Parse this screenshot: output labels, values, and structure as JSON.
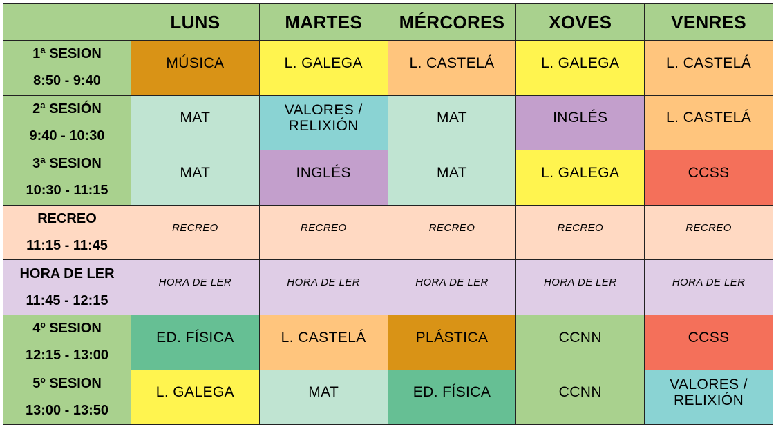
{
  "colors": {
    "header": "#a9d18e",
    "musica": "#d99316",
    "galega": "#fff44f",
    "castela": "#ffc57d",
    "mat": "#c0e4d2",
    "valores": "#8ad3d3",
    "ingles": "#c39fcc",
    "ccss": "#f4705a",
    "recreo": "#ffd9c2",
    "ler": "#dfcde6",
    "edfisica": "#66bf94",
    "plastica": "#d99316",
    "ccnn": "#a9d18e"
  },
  "days": [
    "LUNS",
    "MARTES",
    "MÉRCORES",
    "XOVES",
    "VENRES"
  ],
  "rows": [
    {
      "name": "1ª SESION",
      "time": "8:50 - 9:40",
      "cells": [
        {
          "label": "MÚSICA",
          "color": "#d99316"
        },
        {
          "label": "L. GALEGA",
          "color": "#fff44f"
        },
        {
          "label": "L. CASTELÁ",
          "color": "#ffc57d"
        },
        {
          "label": "L. GALEGA",
          "color": "#fff44f"
        },
        {
          "label": "L. CASTELÁ",
          "color": "#ffc57d"
        }
      ]
    },
    {
      "name": "2ª SESIÓN",
      "time": "9:40 - 10:30",
      "cells": [
        {
          "label": "MAT",
          "color": "#c0e4d2"
        },
        {
          "label": "VALORES / RELIXIÓN",
          "color": "#8ad3d3"
        },
        {
          "label": "MAT",
          "color": "#c0e4d2"
        },
        {
          "label": "INGLÉS",
          "color": "#c39fcc"
        },
        {
          "label": "L. CASTELÁ",
          "color": "#ffc57d"
        }
      ]
    },
    {
      "name": "3ª SESION",
      "time": "10:30 - 11:15",
      "cells": [
        {
          "label": "MAT",
          "color": "#c0e4d2"
        },
        {
          "label": "INGLÉS",
          "color": "#c39fcc"
        },
        {
          "label": "MAT",
          "color": "#c0e4d2"
        },
        {
          "label": "L. GALEGA",
          "color": "#fff44f"
        },
        {
          "label": "CCSS",
          "color": "#f4705a"
        }
      ]
    },
    {
      "name": "RECREO",
      "time": "11:15 - 11:45",
      "small": true,
      "cells": [
        {
          "label": "RECREO",
          "color": "#ffd9c2"
        },
        {
          "label": "RECREO",
          "color": "#ffd9c2"
        },
        {
          "label": "RECREO",
          "color": "#ffd9c2"
        },
        {
          "label": "RECREO",
          "color": "#ffd9c2"
        },
        {
          "label": "RECREO",
          "color": "#ffd9c2"
        }
      ]
    },
    {
      "name": "HORA DE LER",
      "time": "11:45 - 12:15",
      "small": true,
      "cells": [
        {
          "label": "HORA DE LER",
          "color": "#dfcde6"
        },
        {
          "label": "HORA DE LER",
          "color": "#dfcde6"
        },
        {
          "label": "HORA DE LER",
          "color": "#dfcde6"
        },
        {
          "label": "HORA DE LER",
          "color": "#dfcde6"
        },
        {
          "label": "HORA DE LER",
          "color": "#dfcde6"
        }
      ]
    },
    {
      "name": "4º SESION",
      "time": "12:15 - 13:00",
      "cells": [
        {
          "label": "ED. FÍSICA",
          "color": "#66bf94"
        },
        {
          "label": "L. CASTELÁ",
          "color": "#ffc57d"
        },
        {
          "label": "PLÁSTICA",
          "color": "#d99316"
        },
        {
          "label": "CCNN",
          "color": "#a9d18e"
        },
        {
          "label": "CCSS",
          "color": "#f4705a"
        }
      ]
    },
    {
      "name": "5º SESION",
      "time": "13:00 - 13:50",
      "cells": [
        {
          "label": "L. GALEGA",
          "color": "#fff44f"
        },
        {
          "label": "MAT",
          "color": "#c0e4d2"
        },
        {
          "label": "ED. FÍSICA",
          "color": "#66bf94"
        },
        {
          "label": "CCNN",
          "color": "#a9d18e"
        },
        {
          "label": "VALORES / RELIXIÓN",
          "color": "#8ad3d3"
        }
      ]
    }
  ],
  "session_column_color": "#a9d18e",
  "recreo_session_color": "#ffd9c2",
  "ler_session_color": "#dfcde6"
}
